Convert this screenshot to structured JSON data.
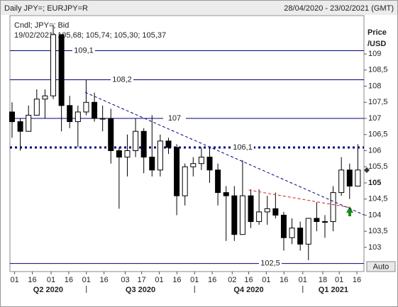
{
  "chart_data": {
    "type": "candlestick",
    "title": "Daily JPY=; EURJPY=R",
    "date_range": "28/04/2020 - 23/02/2021 (GMT)",
    "legend_lines": [
      "Cndl; JPY=; Bid",
      "19/02/2021; 105,68; 105,74; 105,30; 105,37"
    ],
    "y_label_lines": [
      "Price",
      "/USD"
    ],
    "ylim": [
      102.25,
      110.19
    ],
    "yticks": [
      103,
      {
        "value": 103.5,
        "label": "103,5"
      },
      104,
      {
        "value": 104.5,
        "label": "104,5"
      },
      105,
      {
        "value": 105.5,
        "label": "105,5"
      },
      106,
      {
        "value": 106.5,
        "label": "106,5"
      },
      107,
      {
        "value": 107.5,
        "label": "107,5"
      },
      108,
      {
        "value": 108.5,
        "label": "108,5"
      },
      109
    ],
    "bold_tick": 105,
    "xlim": [
      "2020-04-27",
      "2021-02-22"
    ],
    "xticks": [
      {
        "value": "2020-05-01",
        "label": "01"
      },
      {
        "value": "2020-05-16",
        "label": "16"
      },
      {
        "value": "2020-06-01",
        "label": "01"
      },
      {
        "value": "2020-06-16",
        "label": "16"
      },
      {
        "value": "2020-07-01",
        "label": "01"
      },
      {
        "value": "2020-07-16",
        "label": "16"
      },
      {
        "value": "2020-08-03",
        "label": "03"
      },
      {
        "value": "2020-08-17",
        "label": "17"
      },
      {
        "value": "2020-09-01",
        "label": "01"
      },
      {
        "value": "2020-09-16",
        "label": "16"
      },
      {
        "value": "2020-10-01",
        "label": "01"
      },
      {
        "value": "2020-10-16",
        "label": "16"
      },
      {
        "value": "2020-11-02",
        "label": "02"
      },
      {
        "value": "2020-11-16",
        "label": "16"
      },
      {
        "value": "2020-12-01",
        "label": "01"
      },
      {
        "value": "2020-12-16",
        "label": "16"
      },
      {
        "value": "2021-01-01",
        "label": "01"
      },
      {
        "value": "2021-01-18",
        "label": "18"
      },
      {
        "value": "2021-02-01",
        "label": "01"
      },
      {
        "value": "2021-02-16",
        "label": "16"
      }
    ],
    "quarters": [
      {
        "label": "Q2 2020",
        "start": "2020-04-01"
      },
      {
        "label": "Q3 2020",
        "start": "2020-07-01"
      },
      {
        "label": "Q4 2020",
        "start": "2020-10-01"
      },
      {
        "label": "Q1 2021",
        "start": "2021-01-01"
      }
    ],
    "levels": [
      {
        "value": 109.1,
        "label": "109,1",
        "style": "solid"
      },
      {
        "value": 108.2,
        "label": "108,2",
        "style": "solid"
      },
      {
        "value": 107,
        "label": "107",
        "style": "solid"
      },
      {
        "value": 106.1,
        "label": "106,1",
        "style": "dotted"
      },
      {
        "value": 102.5,
        "label": "102,5",
        "style": "solid"
      }
    ],
    "level_color": "#000080",
    "trendlines": [
      {
        "color": "#000080",
        "x": [
          "2020-06-30",
          "2021-02-22"
        ],
        "y": [
          107.81,
          104.01
        ]
      },
      {
        "color": "#cc2222",
        "x": [
          "2020-11-16",
          "2021-02-11"
        ],
        "y": [
          104.78,
          104.23
        ]
      }
    ],
    "up_color": "#ffffff",
    "down_color": "#000000",
    "x": [
      "2020-04-27",
      "2020-05-04",
      "2020-05-11",
      "2020-05-18",
      "2020-05-25",
      "2020-06-01",
      "2020-06-08",
      "2020-06-15",
      "2020-06-22",
      "2020-06-29",
      "2020-07-06",
      "2020-07-13",
      "2020-07-20",
      "2020-07-27",
      "2020-08-03",
      "2020-08-10",
      "2020-08-17",
      "2020-08-24",
      "2020-08-31",
      "2020-09-07",
      "2020-09-14",
      "2020-09-21",
      "2020-09-28",
      "2020-10-05",
      "2020-10-12",
      "2020-10-19",
      "2020-10-26",
      "2020-11-02",
      "2020-11-09",
      "2020-11-16",
      "2020-11-23",
      "2020-11-30",
      "2020-12-07",
      "2020-12-14",
      "2020-12-21",
      "2020-12-28",
      "2021-01-04",
      "2021-01-11",
      "2021-01-18",
      "2021-01-25",
      "2021-02-01",
      "2021-02-08",
      "2021-02-15"
    ],
    "open": [
      107.2,
      106.9,
      106.6,
      107.1,
      107.6,
      107.7,
      109.6,
      107.4,
      106.9,
      107.2,
      107.5,
      107.0,
      107.0,
      106.0,
      105.8,
      106.0,
      106.6,
      105.8,
      105.4,
      106.3,
      106.1,
      104.6,
      105.5,
      105.6,
      105.8,
      105.4,
      104.7,
      104.6,
      103.4,
      104.6,
      103.8,
      104.1,
      104.2,
      104.0,
      103.3,
      103.6,
      103.1,
      103.9,
      103.8,
      103.8,
      104.7,
      105.4,
      104.9
    ],
    "high": [
      107.5,
      107.0,
      107.4,
      107.9,
      107.9,
      109.9,
      109.6,
      107.7,
      107.4,
      108.2,
      107.8,
      107.4,
      107.3,
      106.1,
      106.5,
      107.0,
      106.7,
      107.1,
      106.5,
      106.4,
      106.2,
      105.6,
      105.8,
      106.1,
      106.1,
      105.6,
      104.9,
      104.9,
      105.7,
      104.8,
      104.8,
      104.6,
      104.7,
      104.1,
      103.9,
      103.8,
      103.9,
      104.4,
      104.0,
      104.9,
      105.8,
      105.6,
      106.2
    ],
    "low": [
      106.4,
      106.0,
      106.6,
      107.1,
      107.0,
      107.6,
      106.6,
      106.7,
      106.1,
      107.1,
      106.9,
      106.6,
      105.6,
      104.2,
      105.2,
      105.8,
      105.3,
      105.2,
      105.2,
      105.9,
      104.0,
      104.3,
      105.2,
      105.4,
      105.0,
      104.3,
      103.2,
      103.2,
      103.4,
      103.6,
      103.7,
      103.7,
      103.9,
      102.9,
      103.1,
      102.9,
      102.6,
      103.5,
      103.3,
      103.5,
      104.6,
      104.5,
      104.9
    ],
    "close": [
      106.9,
      106.6,
      107.1,
      107.6,
      107.7,
      109.6,
      107.4,
      106.9,
      107.2,
      107.5,
      107.0,
      107.0,
      106.0,
      105.8,
      106.0,
      106.6,
      105.8,
      105.4,
      106.3,
      106.1,
      104.6,
      105.5,
      105.6,
      105.8,
      105.4,
      104.7,
      104.6,
      103.4,
      104.6,
      103.8,
      104.1,
      104.2,
      104.0,
      103.3,
      103.6,
      103.1,
      103.9,
      103.8,
      103.8,
      104.7,
      105.4,
      104.9,
      105.4
    ],
    "auto_button": "Auto"
  }
}
